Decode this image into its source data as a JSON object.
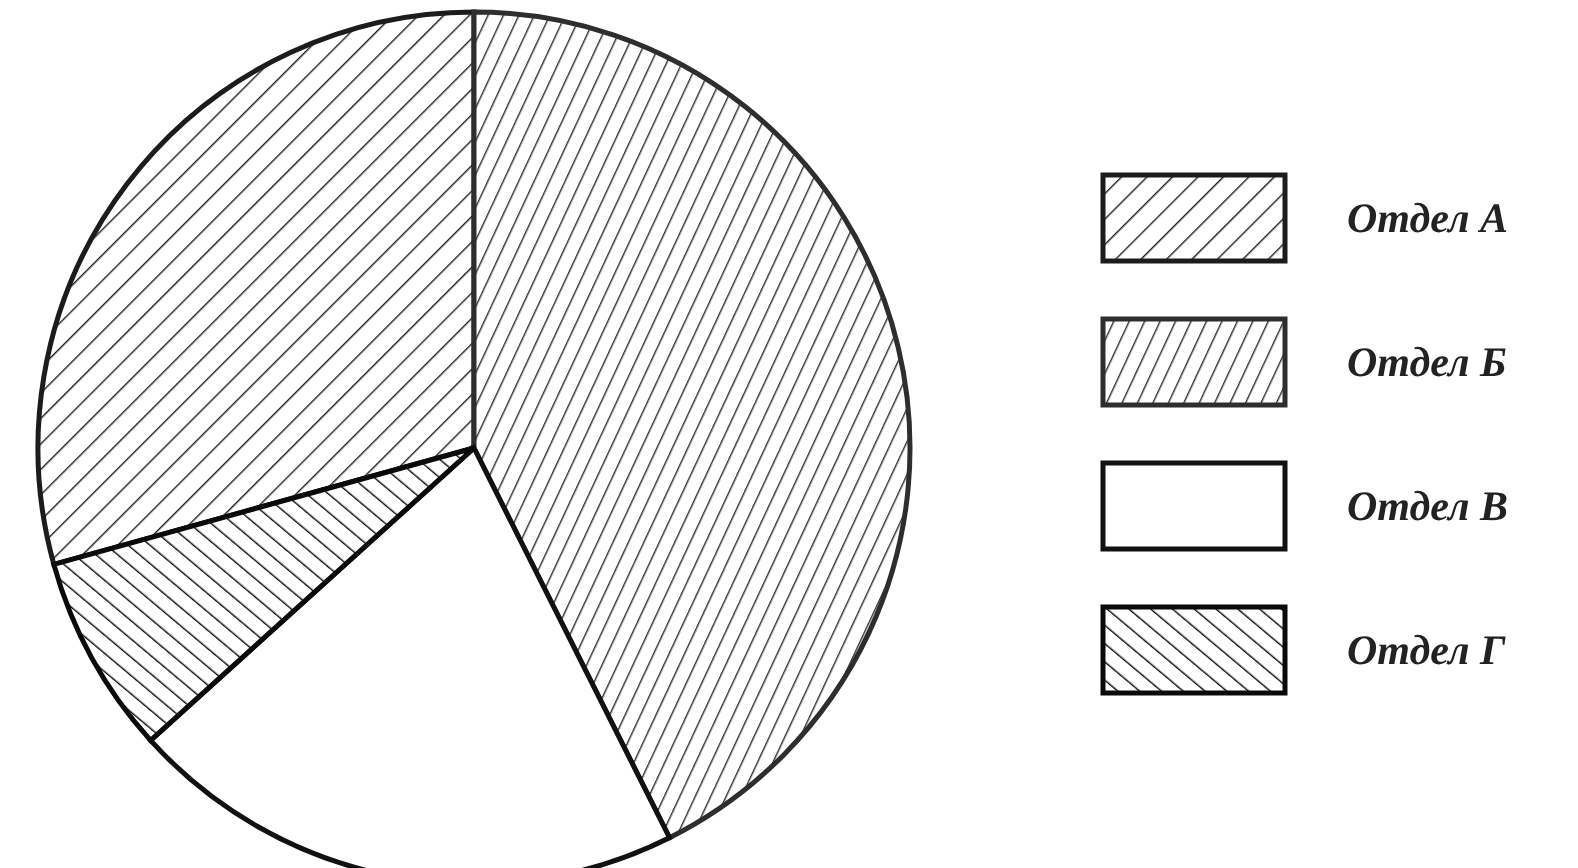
{
  "chart_data": {
    "type": "pie",
    "categories": [
      "Отдел А",
      "Отдел Б",
      "Отдел В",
      "Отдел Г"
    ],
    "values": [
      29.3,
      42.6,
      20.7,
      7.4
    ],
    "colors": [
      "#1c1c1c",
      "#2e2e2e",
      "#ffffff",
      "#0a0a0a"
    ],
    "legend": "right"
  }
}
